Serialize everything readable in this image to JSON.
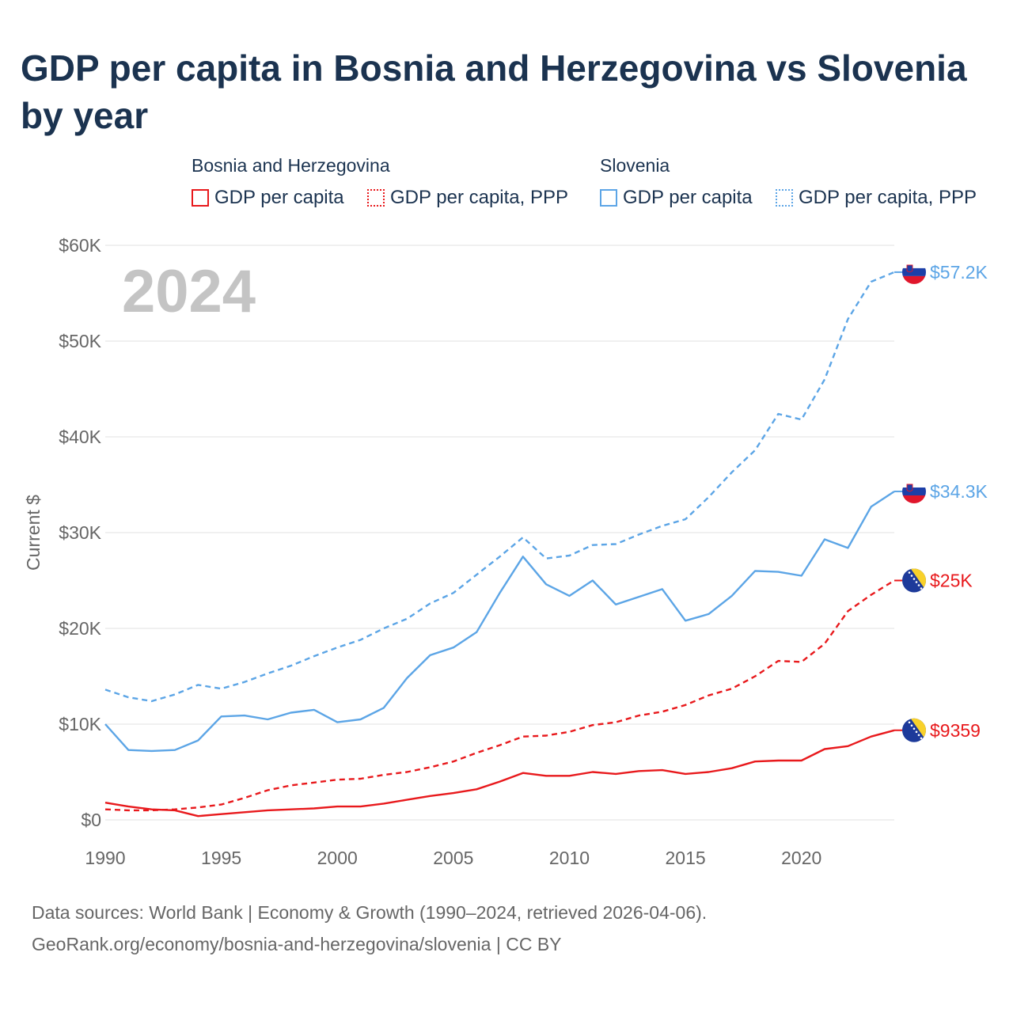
{
  "title": "GDP per capita in Bosnia and Herzegovina vs Slovenia by year",
  "legend": {
    "groups": [
      {
        "name": "Bosnia and Herzegovina",
        "color": "#e8191c",
        "items": [
          {
            "label": "GDP per capita",
            "style": "solid"
          },
          {
            "label": "GDP per capita, PPP",
            "style": "dotted"
          }
        ]
      },
      {
        "name": "Slovenia",
        "color": "#5ca5e6",
        "items": [
          {
            "label": "GDP per capita",
            "style": "solid"
          },
          {
            "label": "GDP per capita, PPP",
            "style": "dotted"
          }
        ]
      }
    ]
  },
  "year_watermark": "2024",
  "footer": {
    "line1": "Data sources: World Bank | Economy & Growth (1990–2024, retrieved 2026-04-06).",
    "line2": "GeoRank.org/economy/bosnia-and-herzegovina/slovenia | CC BY"
  },
  "chart_data": {
    "type": "line",
    "title": "GDP per capita in Bosnia and Herzegovina vs Slovenia by year",
    "xlabel": "",
    "ylabel": "Current $",
    "xlim": [
      1990,
      2024
    ],
    "ylim": [
      0,
      60000
    ],
    "x_ticks": [
      1990,
      1995,
      2000,
      2005,
      2010,
      2015,
      2020
    ],
    "x_tick_labels": [
      "1990",
      "1995",
      "2000",
      "2005",
      "2010",
      "2015",
      "2020"
    ],
    "y_ticks": [
      0,
      10000,
      20000,
      30000,
      40000,
      50000,
      60000
    ],
    "y_tick_labels": [
      "$0",
      "$10K",
      "$20K",
      "$30K",
      "$40K",
      "$50K",
      "$60K"
    ],
    "grid": true,
    "x": [
      1990,
      1991,
      1992,
      1993,
      1994,
      1995,
      1996,
      1997,
      1998,
      1999,
      2000,
      2001,
      2002,
      2003,
      2004,
      2005,
      2006,
      2007,
      2008,
      2009,
      2010,
      2011,
      2012,
      2013,
      2014,
      2015,
      2016,
      2017,
      2018,
      2019,
      2020,
      2021,
      2022,
      2023,
      2024
    ],
    "series": [
      {
        "name": "Slovenia GDP per capita, PPP",
        "country": "Slovenia",
        "color": "#5ca5e6",
        "dash": "dashed",
        "end_label": "$57.2K",
        "flag": "slovenia",
        "values": [
          13600,
          12800,
          12400,
          13100,
          14100,
          13700,
          14400,
          15300,
          16100,
          17100,
          18000,
          18800,
          20000,
          21000,
          22600,
          23700,
          25600,
          27500,
          29500,
          27300,
          27600,
          28700,
          28800,
          29800,
          30700,
          31400,
          33700,
          36300,
          38600,
          42400,
          41800,
          46000,
          52300,
          56200,
          57200
        ]
      },
      {
        "name": "Slovenia GDP per capita",
        "country": "Slovenia",
        "color": "#5ca5e6",
        "dash": "solid",
        "end_label": "$34.3K",
        "flag": "slovenia",
        "values": [
          10000,
          7300,
          7200,
          7300,
          8300,
          10800,
          10900,
          10500,
          11200,
          11500,
          10200,
          10500,
          11700,
          14800,
          17200,
          18000,
          19600,
          23700,
          27500,
          24600,
          23400,
          25000,
          22500,
          23300,
          24100,
          20800,
          21500,
          23400,
          26000,
          25900,
          25500,
          29300,
          28400,
          32700,
          34300
        ]
      },
      {
        "name": "Bosnia and Herzegovina GDP per capita, PPP",
        "country": "Bosnia and Herzegovina",
        "color": "#e8191c",
        "dash": "dashed",
        "end_label": "$25K",
        "flag": "bosnia",
        "values": [
          1100,
          1000,
          1000,
          1100,
          1300,
          1600,
          2300,
          3100,
          3600,
          3900,
          4200,
          4300,
          4700,
          5000,
          5500,
          6100,
          7000,
          7800,
          8700,
          8800,
          9200,
          9900,
          10200,
          10900,
          11300,
          12000,
          13000,
          13700,
          15000,
          16600,
          16500,
          18400,
          21800,
          23500,
          25000
        ]
      },
      {
        "name": "Bosnia and Herzegovina GDP per capita",
        "country": "Bosnia and Herzegovina",
        "color": "#e8191c",
        "dash": "solid",
        "end_label": "$9359",
        "flag": "bosnia",
        "values": [
          1800,
          1400,
          1100,
          1000,
          400,
          600,
          800,
          1000,
          1100,
          1200,
          1400,
          1400,
          1700,
          2100,
          2500,
          2800,
          3200,
          4000,
          4900,
          4600,
          4600,
          5000,
          4800,
          5100,
          5200,
          4800,
          5000,
          5400,
          6100,
          6200,
          6200,
          7400,
          7700,
          8700,
          9359
        ]
      }
    ]
  }
}
